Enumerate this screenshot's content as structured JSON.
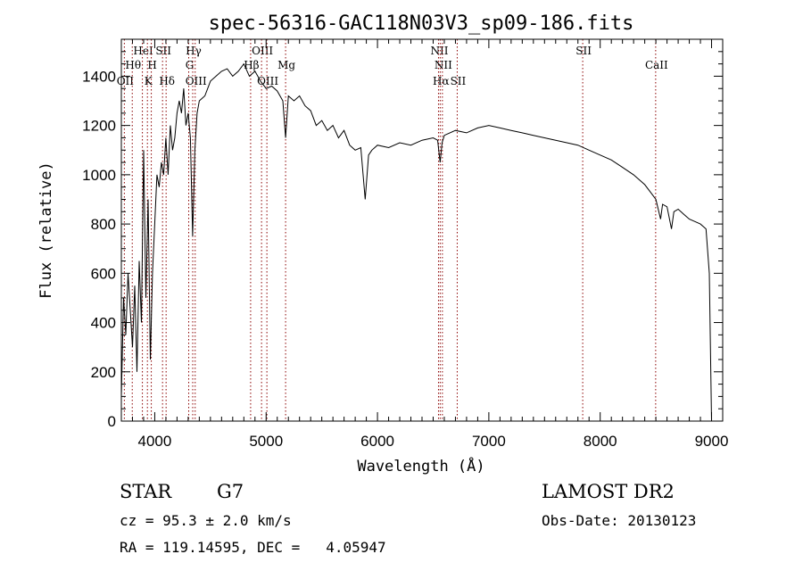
{
  "chart_data": {
    "type": "line",
    "title": "spec-56316-GAC118N03V3_sp09-186.fits",
    "xlabel": "Wavelength (Å)",
    "ylabel": "Flux (relative)",
    "xlim": [
      3700,
      9100
    ],
    "ylim": [
      0,
      1550
    ],
    "x_ticks": [
      4000,
      5000,
      6000,
      7000,
      8000,
      9000
    ],
    "y_ticks": [
      0,
      200,
      400,
      600,
      800,
      1000,
      1200,
      1400
    ],
    "grid": false,
    "line_color": "#000000",
    "marker_color": "#8b0000",
    "spectrum": {
      "x": [
        3700,
        3720,
        3740,
        3760,
        3780,
        3800,
        3820,
        3840,
        3860,
        3880,
        3900,
        3920,
        3940,
        3960,
        3980,
        4000,
        4020,
        4040,
        4060,
        4080,
        4100,
        4120,
        4140,
        4160,
        4180,
        4200,
        4220,
        4240,
        4260,
        4280,
        4300,
        4320,
        4340,
        4360,
        4380,
        4400,
        4450,
        4500,
        4550,
        4600,
        4650,
        4700,
        4750,
        4800,
        4850,
        4900,
        4950,
        5000,
        5050,
        5100,
        5150,
        5175,
        5200,
        5250,
        5300,
        5350,
        5400,
        5450,
        5500,
        5550,
        5600,
        5650,
        5700,
        5750,
        5800,
        5850,
        5890,
        5920,
        5950,
        6000,
        6100,
        6200,
        6300,
        6400,
        6500,
        6540,
        6563,
        6580,
        6600,
        6700,
        6800,
        6900,
        7000,
        7100,
        7200,
        7300,
        7400,
        7500,
        7600,
        7700,
        7800,
        7900,
        8000,
        8100,
        8200,
        8300,
        8400,
        8450,
        8500,
        8542,
        8560,
        8600,
        8640,
        8662,
        8700,
        8750,
        8800,
        8850,
        8900,
        8950,
        8980,
        9000
      ],
      "y": [
        100,
        500,
        350,
        600,
        450,
        300,
        550,
        200,
        650,
        400,
        1100,
        500,
        900,
        250,
        600,
        800,
        1000,
        950,
        1050,
        1000,
        1150,
        1000,
        1200,
        1100,
        1150,
        1250,
        1300,
        1250,
        1350,
        1200,
        1250,
        1150,
        750,
        1100,
        1250,
        1300,
        1320,
        1380,
        1400,
        1420,
        1430,
        1400,
        1420,
        1450,
        1400,
        1420,
        1380,
        1350,
        1360,
        1340,
        1300,
        1150,
        1320,
        1300,
        1320,
        1280,
        1260,
        1200,
        1220,
        1180,
        1200,
        1150,
        1180,
        1120,
        1100,
        1110,
        900,
        1080,
        1100,
        1120,
        1110,
        1130,
        1120,
        1140,
        1150,
        1140,
        1050,
        1130,
        1160,
        1180,
        1170,
        1190,
        1200,
        1190,
        1180,
        1170,
        1160,
        1150,
        1140,
        1130,
        1120,
        1100,
        1080,
        1060,
        1030,
        1000,
        960,
        930,
        900,
        820,
        880,
        870,
        780,
        850,
        860,
        840,
        820,
        810,
        800,
        780,
        600,
        0
      ]
    },
    "line_markers": [
      {
        "x": 3727,
        "label": "OII",
        "row": 3
      },
      {
        "x": 3798,
        "label": "Hθ",
        "row": 2
      },
      {
        "x": 3889,
        "label": "HeI",
        "row": 1
      },
      {
        "x": 3934,
        "label": "K",
        "row": 3
      },
      {
        "x": 3969,
        "label": "H",
        "row": 2
      },
      {
        "x": 4070,
        "label": "SII",
        "row": 1
      },
      {
        "x": 4102,
        "label": "Hδ",
        "row": 3
      },
      {
        "x": 4305,
        "label": "G",
        "row": 2
      },
      {
        "x": 4341,
        "label": "Hγ",
        "row": 1
      },
      {
        "x": 4363,
        "label": "OIII",
        "row": 3
      },
      {
        "x": 4861,
        "label": "Hβ",
        "row": 2
      },
      {
        "x": 4959,
        "label": "OIII",
        "row": 1
      },
      {
        "x": 5007,
        "label": "OIII",
        "row": 3
      },
      {
        "x": 5175,
        "label": "Mg",
        "row": 2
      },
      {
        "x": 6548,
        "label": "NII",
        "row": 1
      },
      {
        "x": 6563,
        "label": "Hα",
        "row": 3
      },
      {
        "x": 6583,
        "label": "NII",
        "row": 2
      },
      {
        "x": 6716,
        "label": "SII",
        "row": 3
      },
      {
        "x": 7843,
        "label": "SII",
        "row": 1
      },
      {
        "x": 8498,
        "label": "CaII",
        "row": 2
      }
    ]
  },
  "info": {
    "object_type": "STAR",
    "subclass": "G7",
    "survey": "LAMOST DR2",
    "redshift_text": "cz = 95.3 ± 2.0 km/s",
    "obs_date_text": "Obs-Date: 20130123",
    "coords_text": "RA = 119.14595, DEC =   4.05947"
  }
}
